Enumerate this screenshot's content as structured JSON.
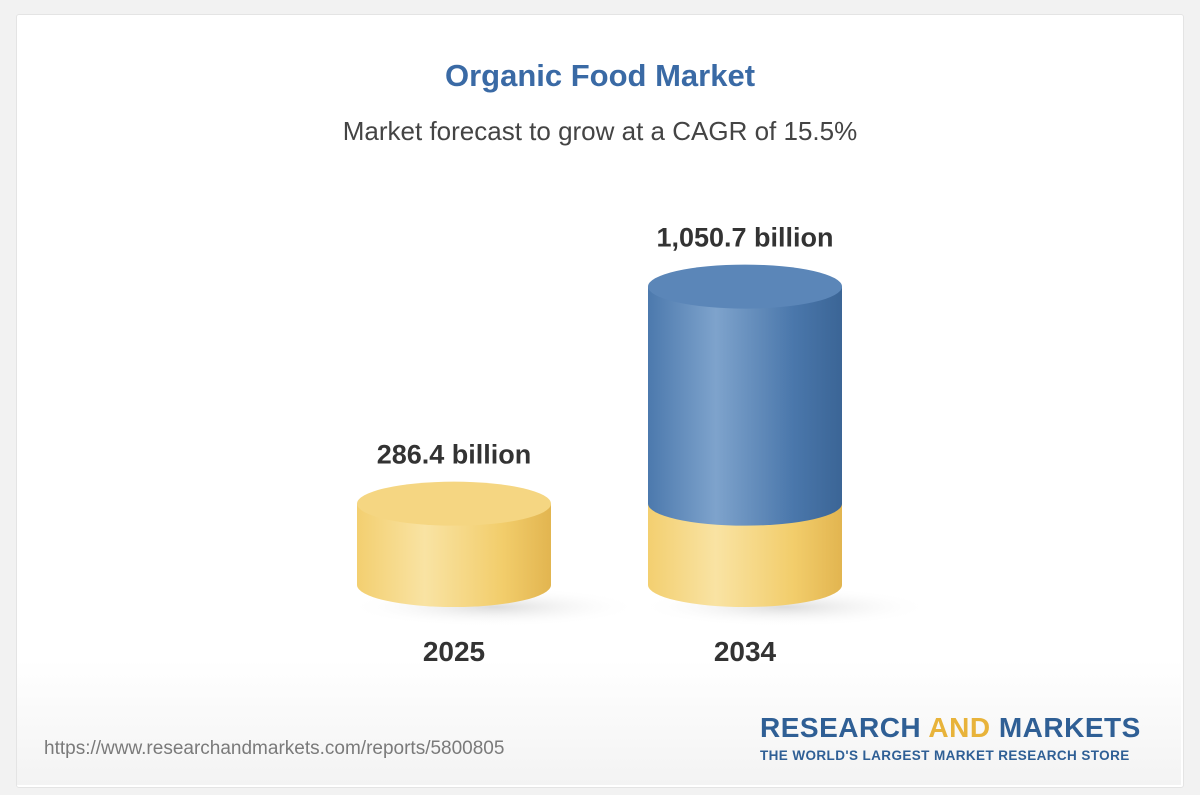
{
  "chart_data": {
    "type": "bar",
    "title": "Organic Food Market",
    "subtitle": "Market forecast to grow at a CAGR of 15.5%",
    "categories": [
      "2025",
      "2034"
    ],
    "values": [
      286.4,
      1050.7
    ],
    "data_labels": [
      "286.4 billion",
      "1,050.7 billion"
    ],
    "style": "3d-cylinder",
    "colors": {
      "base": "#f2cc6a",
      "growth": "#4a78ad"
    }
  },
  "footer": {
    "source_url": "https://www.researchandmarkets.com/reports/5800805",
    "logo": {
      "word1": "RESEARCH",
      "word2": "AND",
      "word3": "MARKETS",
      "tagline": "THE WORLD'S LARGEST MARKET RESEARCH STORE"
    }
  }
}
